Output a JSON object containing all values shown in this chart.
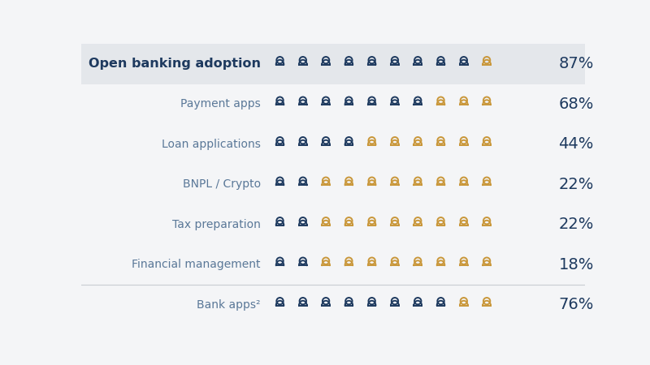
{
  "rows": [
    {
      "label": "Open banking adoption",
      "pct": "87%",
      "dark_count": 9,
      "bold": true,
      "header": true,
      "separator_above": false
    },
    {
      "label": "Payment apps",
      "pct": "68%",
      "dark_count": 7,
      "bold": false,
      "header": false,
      "separator_above": false
    },
    {
      "label": "Loan applications",
      "pct": "44%",
      "dark_count": 4,
      "bold": false,
      "header": false,
      "separator_above": false
    },
    {
      "label": "BNPL / Crypto",
      "pct": "22%",
      "dark_count": 2,
      "bold": false,
      "header": false,
      "separator_above": false
    },
    {
      "label": "Tax preparation",
      "pct": "22%",
      "dark_count": 2,
      "bold": false,
      "header": false,
      "separator_above": false
    },
    {
      "label": "Financial management",
      "pct": "18%",
      "dark_count": 2,
      "bold": false,
      "header": false,
      "separator_above": false
    },
    {
      "label": "Bank apps²",
      "pct": "76%",
      "dark_count": 8,
      "bold": false,
      "header": false,
      "separator_above": true
    }
  ],
  "total_icons": 10,
  "dark_color": "#1e3a5f",
  "gold_color": "#c9973a",
  "header_bg": "#e4e7eb",
  "bg_color": "#f4f5f7",
  "pct_color": "#1e3a5f",
  "label_color_normal": "#5a7898",
  "label_color_header": "#1e3a5f",
  "separator_color": "#c8cdd2"
}
